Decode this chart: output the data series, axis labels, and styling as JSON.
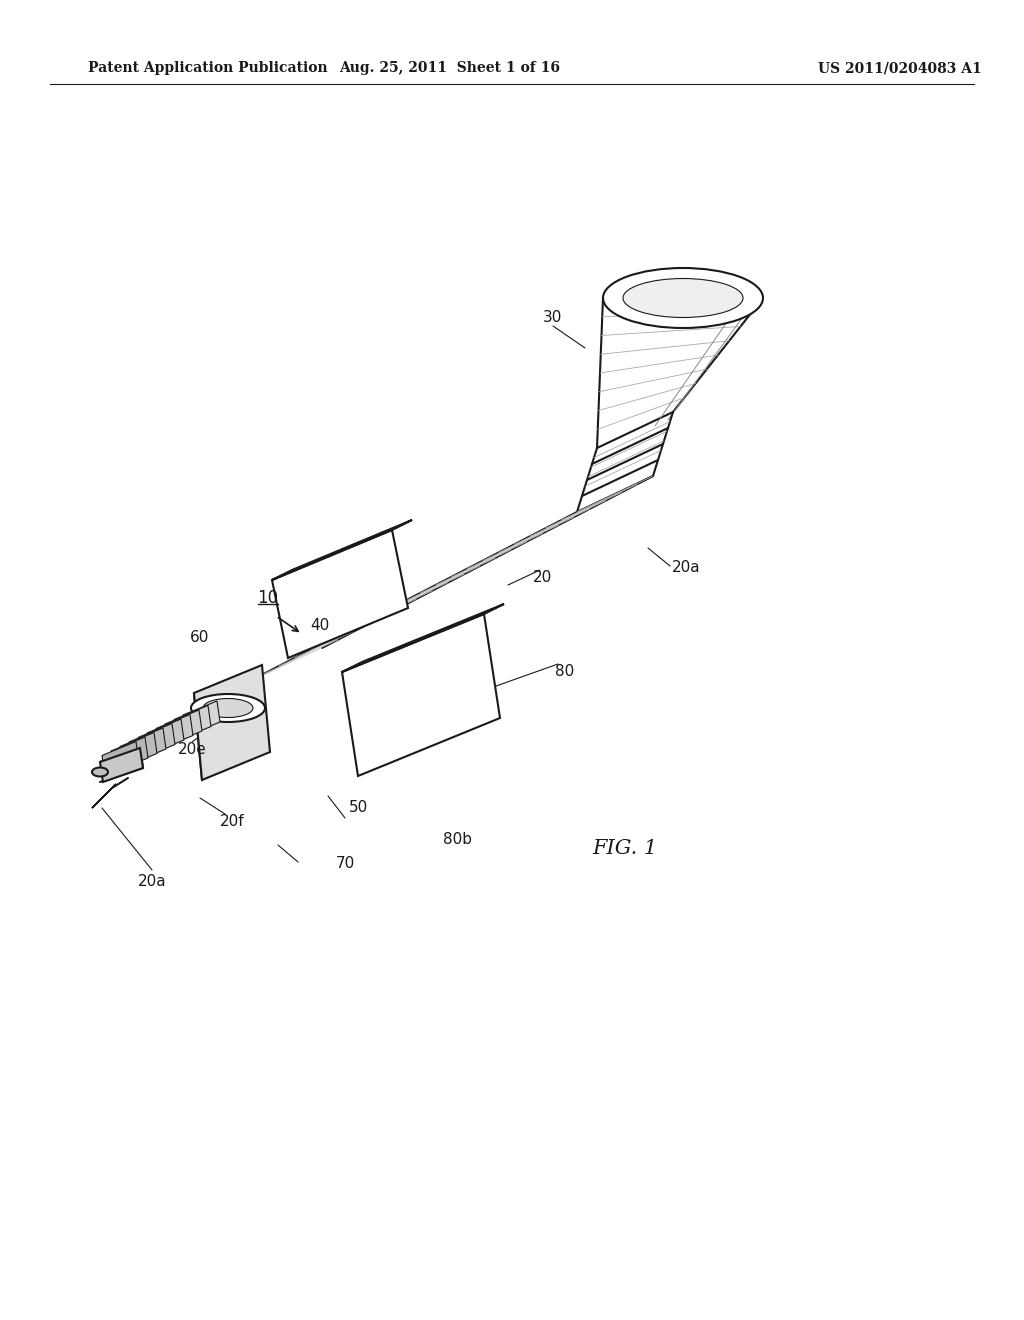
{
  "bg_color": "#ffffff",
  "line_color": "#1a1a1a",
  "header_left": "Patent Application Publication",
  "header_mid": "Aug. 25, 2011  Sheet 1 of 16",
  "header_right": "US 2011/0204083 A1",
  "fig_label": "FIG. 1"
}
